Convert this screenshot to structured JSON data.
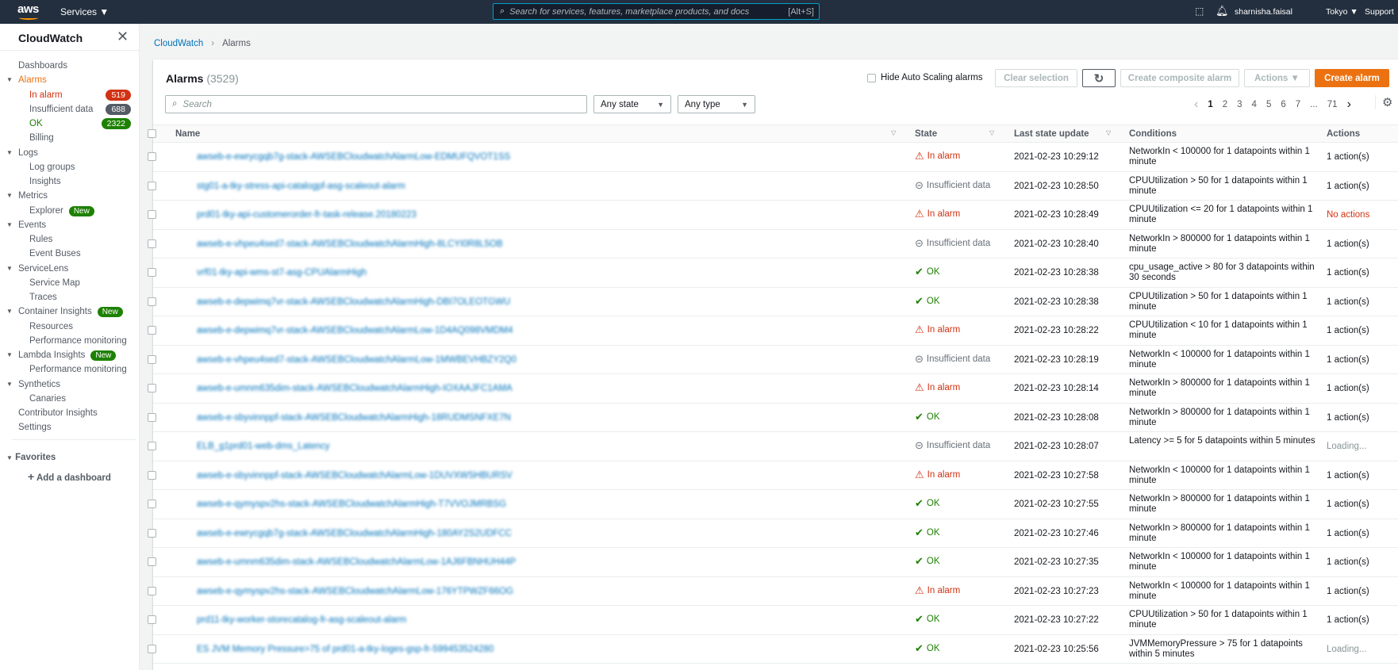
{
  "topbar": {
    "logo": "aws",
    "services": "Services ▼",
    "search_placeholder": "Search for services, features, marketplace products, and docs",
    "search_shortcut": "[Alt+S]",
    "user": "sharnisha.faisal",
    "region": "Tokyo ▼",
    "support": "Support"
  },
  "sidebar": {
    "title": "CloudWatch",
    "items": [
      {
        "label": "Dashboards",
        "level": 1
      },
      {
        "label": "Alarms",
        "level": 1,
        "caret": true,
        "active": true
      },
      {
        "label": "In alarm",
        "level": 2,
        "badge": "519",
        "badge_color": "#d13212",
        "color": "#d13212"
      },
      {
        "label": "Insufficient data",
        "level": 2,
        "badge": "688",
        "badge_color": "#545b64"
      },
      {
        "label": "OK",
        "level": 2,
        "badge": "2322",
        "badge_color": "#1d8102",
        "color": "#1d8102"
      },
      {
        "label": "Billing",
        "level": 2
      },
      {
        "label": "Logs",
        "level": 1,
        "caret": true
      },
      {
        "label": "Log groups",
        "level": 2
      },
      {
        "label": "Insights",
        "level": 2
      },
      {
        "label": "Metrics",
        "level": 1,
        "caret": true
      },
      {
        "label": "Explorer",
        "level": 2,
        "new": "New"
      },
      {
        "label": "Events",
        "level": 1,
        "caret": true
      },
      {
        "label": "Rules",
        "level": 2
      },
      {
        "label": "Event Buses",
        "level": 2
      },
      {
        "label": "ServiceLens",
        "level": 1,
        "caret": true
      },
      {
        "label": "Service Map",
        "level": 2
      },
      {
        "label": "Traces",
        "level": 2
      },
      {
        "label": "Container Insights",
        "level": 1,
        "caret": true,
        "new": "New"
      },
      {
        "label": "Resources",
        "level": 2
      },
      {
        "label": "Performance monitoring",
        "level": 2
      },
      {
        "label": "Lambda Insights",
        "level": 1,
        "caret": true,
        "new": "New"
      },
      {
        "label": "Performance monitoring",
        "level": 2
      },
      {
        "label": "Synthetics",
        "level": 1,
        "caret": true
      },
      {
        "label": "Canaries",
        "level": 2
      },
      {
        "label": "Contributor Insights",
        "level": 1
      },
      {
        "label": "Settings",
        "level": 1
      }
    ],
    "favorites": "Favorites",
    "add_dashboard": "Add a dashboard"
  },
  "breadcrumb": {
    "root": "CloudWatch",
    "current": "Alarms"
  },
  "alarms": {
    "title": "Alarms",
    "count": "(3529)",
    "hide_autoscaling": "Hide Auto Scaling alarms",
    "clear_selection": "Clear selection",
    "create_composite": "Create composite alarm",
    "actions": "Actions ▼",
    "create_alarm": "Create alarm",
    "search_placeholder": "Search",
    "state_filter": "Any state",
    "type_filter": "Any type",
    "pages": [
      "1",
      "2",
      "3",
      "4",
      "5",
      "6",
      "7",
      "...",
      "71"
    ],
    "columns": {
      "name": "Name",
      "state": "State",
      "last_update": "Last state update",
      "conditions": "Conditions",
      "actions": "Actions"
    },
    "rows": [
      {
        "name": "awseb-e-ewrycgqb7g-stack-AWSEBCloudwatchAlarmLow-EDMUFQVOT1SS",
        "state": "In alarm",
        "updated": "2021-02-23 10:29:12",
        "condition": "NetworkIn < 100000 for 1 datapoints within 1 minute",
        "actions": "1 action(s)"
      },
      {
        "name": "stg01-a-tky-stress-api-catalogpf-asg-scaleout-alarm",
        "state": "Insufficient data",
        "updated": "2021-02-23 10:28:50",
        "condition": "CPUUtilization > 50 for 1 datapoints within 1 minute",
        "actions": "1 action(s)"
      },
      {
        "name": "prd01-tky-api-customerorder-fr-task-release.20180223",
        "state": "In alarm",
        "updated": "2021-02-23 10:28:49",
        "condition": "CPUUtilization <= 20 for 1 datapoints within 1 minute",
        "actions": "No actions"
      },
      {
        "name": "awseb-e-vhpeu4sed7-stack-AWSEBCloudwatchAlarmHigh-8LCYI0R8L5OB",
        "state": "Insufficient data",
        "updated": "2021-02-23 10:28:40",
        "condition": "NetworkIn > 800000 for 1 datapoints within 1 minute",
        "actions": "1 action(s)"
      },
      {
        "name": "vrf01-tky-api-wms-st7-asg-CPUAlarmHigh",
        "state": "OK",
        "updated": "2021-02-23 10:28:38",
        "condition": "cpu_usage_active > 80 for 3 datapoints within 30 seconds",
        "actions": "1 action(s)"
      },
      {
        "name": "awseb-e-depwimq7vr-stack-AWSEBCloudwatchAlarmHigh-DBI7OLEOTGWU",
        "state": "OK",
        "updated": "2021-02-23 10:28:38",
        "condition": "CPUUtilization > 50 for 1 datapoints within 1 minute",
        "actions": "1 action(s)"
      },
      {
        "name": "awseb-e-depwimq7vr-stack-AWSEBCloudwatchAlarmLow-1D4AQ098VMDM4",
        "state": "In alarm",
        "updated": "2021-02-23 10:28:22",
        "condition": "CPUUtilization < 10 for 1 datapoints within 1 minute",
        "actions": "1 action(s)"
      },
      {
        "name": "awseb-e-vhpeu4sed7-stack-AWSEBCloudwatchAlarmLow-1MWBEVHBZY2Q0",
        "state": "Insufficient data",
        "updated": "2021-02-23 10:28:19",
        "condition": "NetworkIn < 100000 for 1 datapoints within 1 minute",
        "actions": "1 action(s)"
      },
      {
        "name": "awseb-e-umnm635dim-stack-AWSEBCloudwatchAlarmHigh-IOXAAJFC1AMA",
        "state": "In alarm",
        "updated": "2021-02-23 10:28:14",
        "condition": "NetworkIn > 800000 for 1 datapoints within 1 minute",
        "actions": "1 action(s)"
      },
      {
        "name": "awseb-e-sbyvinnppf-stack-AWSEBCloudwatchAlarmHigh-18RUDMSNFXE7N",
        "state": "OK",
        "updated": "2021-02-23 10:28:08",
        "condition": "NetworkIn > 800000 for 1 datapoints within 1 minute",
        "actions": "1 action(s)"
      },
      {
        "name": "ELB_g1prd01-web-dms_Latency",
        "state": "Insufficient data",
        "updated": "2021-02-23 10:28:07",
        "condition": "Latency >= 5 for 5 datapoints within 5 minutes",
        "actions": "Loading..."
      },
      {
        "name": "awseb-e-sbyvinnppf-stack-AWSEBCloudwatchAlarmLow-1DUVXWSHBURSV",
        "state": "In alarm",
        "updated": "2021-02-23 10:27:58",
        "condition": "NetworkIn < 100000 for 1 datapoints within 1 minute",
        "actions": "1 action(s)"
      },
      {
        "name": "awseb-e-qymyspv2hs-stack-AWSEBCloudwatchAlarmHigh-T7VVOJMRBSG",
        "state": "OK",
        "updated": "2021-02-23 10:27:55",
        "condition": "NetworkIn > 800000 for 1 datapoints within 1 minute",
        "actions": "1 action(s)"
      },
      {
        "name": "awseb-e-ewrycgqb7g-stack-AWSEBCloudwatchAlarmHigh-180AY2S2UDFCC",
        "state": "OK",
        "updated": "2021-02-23 10:27:46",
        "condition": "NetworkIn > 800000 for 1 datapoints within 1 minute",
        "actions": "1 action(s)"
      },
      {
        "name": "awseb-e-umnm635dim-stack-AWSEBCloudwatchAlarmLow-1AJ6FBNHUH44P",
        "state": "OK",
        "updated": "2021-02-23 10:27:35",
        "condition": "NetworkIn < 100000 for 1 datapoints within 1 minute",
        "actions": "1 action(s)"
      },
      {
        "name": "awseb-e-qymyspv2hs-stack-AWSEBCloudwatchAlarmLow-176YTPWZF66OG",
        "state": "In alarm",
        "updated": "2021-02-23 10:27:23",
        "condition": "NetworkIn < 100000 for 1 datapoints within 1 minute",
        "actions": "1 action(s)"
      },
      {
        "name": "prd11-tky-worker-storecatalog-fr-asg-scaleout-alarm",
        "state": "OK",
        "updated": "2021-02-23 10:27:22",
        "condition": "CPUUtilization > 50 for 1 datapoints within 1 minute",
        "actions": "1 action(s)"
      },
      {
        "name": "ES JVM Memory Pressure>75 of prd01-a-tky-loges-gsp-fr-599453524280",
        "state": "OK",
        "updated": "2021-02-23 10:25:56",
        "condition": "JVMMemoryPressure > 75 for 1 datapoints within 5 minutes",
        "actions": "Loading..."
      }
    ]
  },
  "colors": {
    "accent": "#ec7211",
    "link": "#0073bb",
    "alarm": "#d13212",
    "ok": "#1d8102",
    "insufficient": "#687078",
    "topbar": "#232f3e"
  }
}
